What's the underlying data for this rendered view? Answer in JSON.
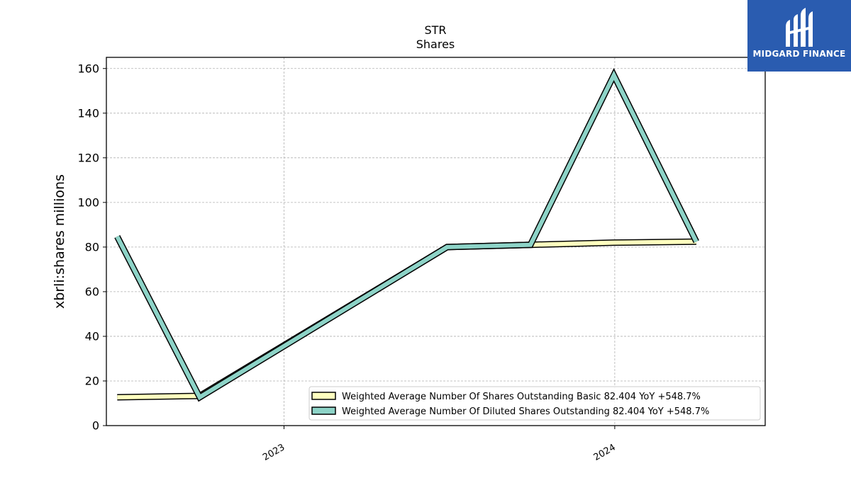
{
  "chart_data": {
    "type": "line",
    "title": "STR",
    "subtitle": "Shares",
    "ylabel": "xbrli:shares millions",
    "xlabel": "",
    "ylim": [
      0,
      165
    ],
    "yticks": [
      0,
      20,
      40,
      60,
      80,
      100,
      120,
      140,
      160
    ],
    "xrange": [
      "2022-06-19",
      "2024-06-15"
    ],
    "xticks": [
      {
        "label": "2023",
        "date": "2023-01-01"
      },
      {
        "label": "2024",
        "date": "2024-01-01"
      }
    ],
    "grid": true,
    "legend_position": "bottom-right",
    "series": [
      {
        "name": "Weighted Average Number Of Shares Outstanding Basic  82.404 YoY +548.7%",
        "color": "#ffffbf",
        "x": [
          "2022-07-01",
          "2022-09-30",
          "2023-06-30",
          "2023-09-30",
          "2023-12-31",
          "2024-03-31"
        ],
        "values": [
          12.7,
          13.3,
          80.0,
          81.0,
          82.0,
          82.4
        ]
      },
      {
        "name": "Weighted Average Number Of Diluted Shares Outstanding  82.404 YoY +548.7%",
        "color": "#8dd3c7",
        "x": [
          "2022-07-01",
          "2022-09-30",
          "2023-06-30",
          "2023-09-30",
          "2023-12-31",
          "2024-03-31"
        ],
        "values": [
          84.7,
          12.7,
          80.0,
          81.0,
          157.0,
          82.4
        ]
      }
    ]
  },
  "logo": {
    "text": "MIDGARD FINANCE",
    "icon": "midgard-logo-icon",
    "background": "#2a5cb0"
  }
}
